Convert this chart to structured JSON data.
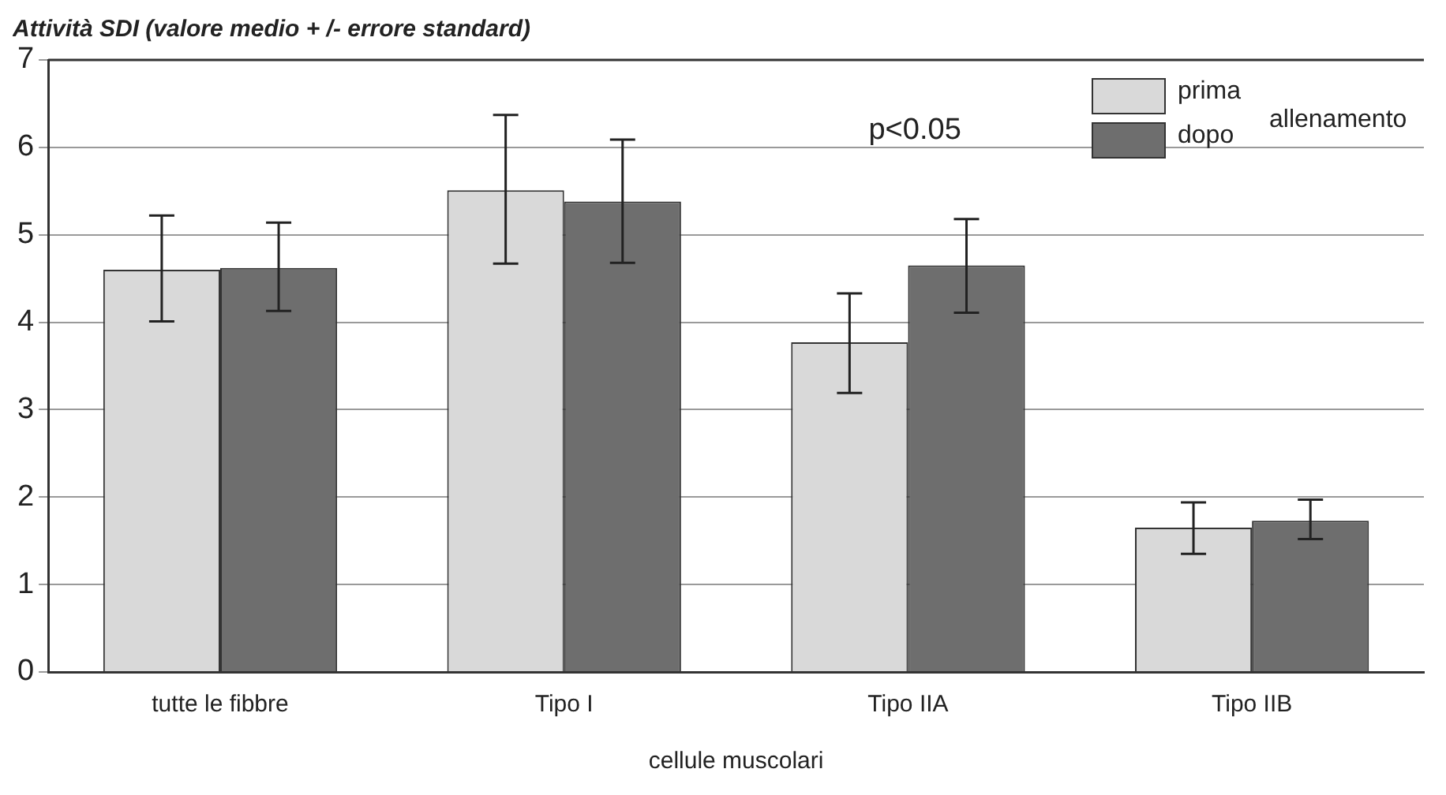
{
  "chart_data": {
    "type": "bar",
    "title": "Attività SDI (valore medio + /- errore standard)",
    "xlabel": "cellule muscolari",
    "legend_title": "allenamento",
    "categories": [
      "tutte le fibbre",
      "Tipo I",
      "Tipo IIA",
      "Tipo IIB"
    ],
    "series": [
      {
        "name": "prima",
        "color": "#d9d9d9",
        "values": [
          4.6,
          5.51,
          3.77,
          1.65
        ],
        "errors": [
          [
            4.01,
            5.22
          ],
          [
            4.67,
            6.37
          ],
          [
            3.19,
            4.33
          ],
          [
            1.35,
            1.94
          ]
        ]
      },
      {
        "name": "dopo",
        "color": "#6e6e6e",
        "values": [
          4.62,
          5.38,
          4.65,
          1.73
        ],
        "errors": [
          [
            4.13,
            5.14
          ],
          [
            4.68,
            6.09
          ],
          [
            4.11,
            5.18
          ],
          [
            1.52,
            1.97
          ]
        ]
      }
    ],
    "ylim": [
      0,
      7
    ],
    "yticks": [
      0,
      1,
      2,
      3,
      4,
      5,
      6,
      7
    ],
    "grid": "y",
    "legend": "top right",
    "annotations": [
      "p<0.05"
    ]
  }
}
